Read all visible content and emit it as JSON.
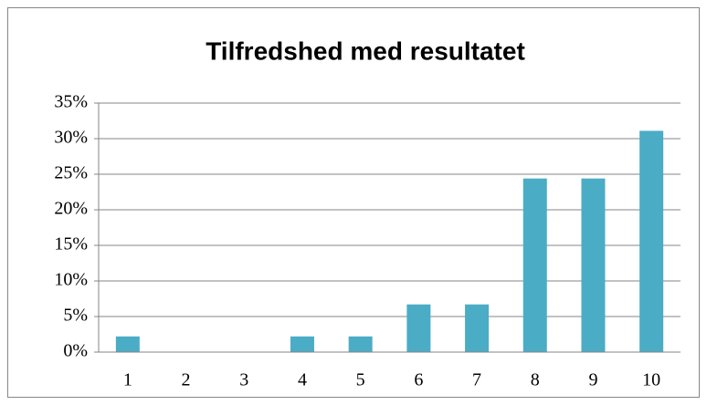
{
  "chart_data": {
    "type": "bar",
    "title": "Tilfredshed med resultatet",
    "categories": [
      "1",
      "2",
      "3",
      "4",
      "5",
      "6",
      "7",
      "8",
      "9",
      "10"
    ],
    "values": [
      2.2,
      0,
      0,
      2.2,
      2.2,
      6.7,
      6.7,
      24.4,
      24.4,
      31.1
    ],
    "color": "#4bacc6",
    "ylim": [
      0,
      35
    ],
    "yticks": [
      {
        "value": 0,
        "label": "0%"
      },
      {
        "value": 5,
        "label": "5%"
      },
      {
        "value": 10,
        "label": "10%"
      },
      {
        "value": 15,
        "label": "15%"
      },
      {
        "value": 20,
        "label": "20%"
      },
      {
        "value": 25,
        "label": "25%"
      },
      {
        "value": 30,
        "label": "30%"
      },
      {
        "value": 35,
        "label": "35%"
      }
    ],
    "grid": true
  }
}
